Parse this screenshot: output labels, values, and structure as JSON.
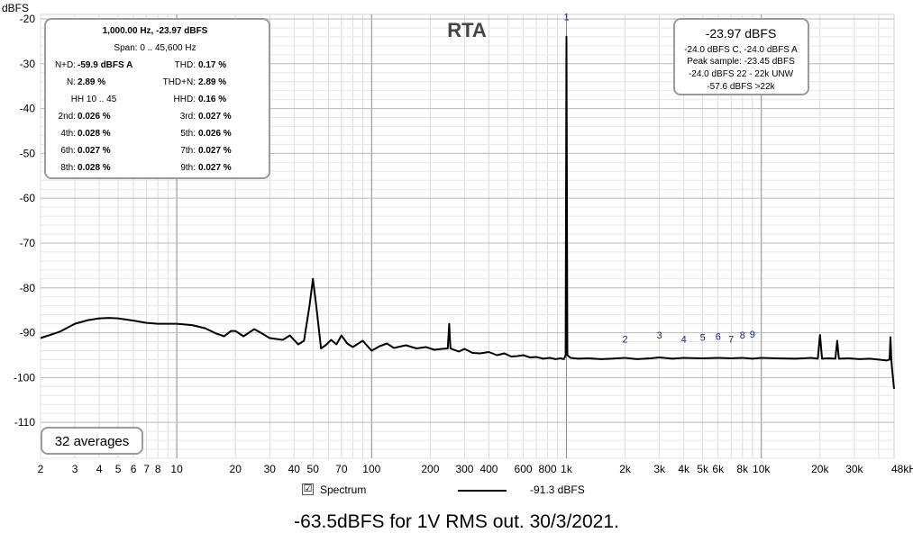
{
  "chart_data": {
    "type": "line",
    "title": "RTA",
    "ylabel": "dBFS",
    "x_scale": "log",
    "xlim": [
      2,
      48000
    ],
    "ylim": [
      -118,
      -19
    ],
    "y_ticks": [
      -20,
      -30,
      -40,
      -50,
      -60,
      -70,
      -80,
      -90,
      -100,
      -110
    ],
    "x_ticks": [
      {
        "v": 2,
        "label": "2"
      },
      {
        "v": 3,
        "label": "3"
      },
      {
        "v": 4,
        "label": "4"
      },
      {
        "v": 5,
        "label": "5"
      },
      {
        "v": 6,
        "label": "6"
      },
      {
        "v": 7,
        "label": "7"
      },
      {
        "v": 8,
        "label": "8"
      },
      {
        "v": 10,
        "label": "10"
      },
      {
        "v": 20,
        "label": "20"
      },
      {
        "v": 30,
        "label": "30"
      },
      {
        "v": 40,
        "label": "40"
      },
      {
        "v": 50,
        "label": "50"
      },
      {
        "v": 70,
        "label": "70"
      },
      {
        "v": 100,
        "label": "100"
      },
      {
        "v": 200,
        "label": "200"
      },
      {
        "v": 300,
        "label": "300"
      },
      {
        "v": 400,
        "label": "400"
      },
      {
        "v": 600,
        "label": "600"
      },
      {
        "v": 800,
        "label": "800"
      },
      {
        "v": 1000,
        "label": "1k"
      },
      {
        "v": 2000,
        "label": "2k"
      },
      {
        "v": 3000,
        "label": "3k"
      },
      {
        "v": 4000,
        "label": "4k"
      },
      {
        "v": 5000,
        "label": "5k"
      },
      {
        "v": 6000,
        "label": "6k"
      },
      {
        "v": 8000,
        "label": "8k"
      },
      {
        "v": 10000,
        "label": "10k"
      },
      {
        "v": 20000,
        "label": "20k"
      },
      {
        "v": 30000,
        "label": "30k"
      },
      {
        "v": 48000,
        "label": "48kHz"
      }
    ],
    "series": [
      {
        "points": [
          [
            2,
            -91.2
          ],
          [
            2.5,
            -89.8
          ],
          [
            3,
            -88.0
          ],
          [
            3.5,
            -87.2
          ],
          [
            4,
            -86.8
          ],
          [
            4.5,
            -86.7
          ],
          [
            5,
            -86.8
          ],
          [
            6,
            -87.3
          ],
          [
            7,
            -87.8
          ],
          [
            8,
            -88.0
          ],
          [
            10,
            -88.0
          ],
          [
            12,
            -88.3
          ],
          [
            14,
            -89.0
          ],
          [
            16,
            -90.2
          ],
          [
            17.5,
            -90.8
          ],
          [
            19,
            -89.6
          ],
          [
            20,
            -89.6
          ],
          [
            22,
            -90.8
          ],
          [
            25,
            -89.2
          ],
          [
            27,
            -90.0
          ],
          [
            30,
            -91.2
          ],
          [
            35,
            -91.6
          ],
          [
            38,
            -90.6
          ],
          [
            42,
            -92.6
          ],
          [
            45,
            -91.8
          ],
          [
            48,
            -84.0
          ],
          [
            50,
            -78.0
          ],
          [
            52,
            -84.0
          ],
          [
            55,
            -93.5
          ],
          [
            58,
            -92.8
          ],
          [
            62,
            -91.6
          ],
          [
            66,
            -92.6
          ],
          [
            70,
            -90.6
          ],
          [
            75,
            -92.4
          ],
          [
            80,
            -93.2
          ],
          [
            90,
            -91.8
          ],
          [
            100,
            -94.0
          ],
          [
            110,
            -93.0
          ],
          [
            120,
            -92.4
          ],
          [
            130,
            -93.4
          ],
          [
            150,
            -92.8
          ],
          [
            170,
            -93.5
          ],
          [
            190,
            -93.2
          ],
          [
            210,
            -93.8
          ],
          [
            230,
            -93.6
          ],
          [
            246,
            -93.5
          ],
          [
            250,
            -88.0
          ],
          [
            254,
            -93.5
          ],
          [
            280,
            -94.2
          ],
          [
            300,
            -93.6
          ],
          [
            330,
            -94.5
          ],
          [
            360,
            -94.6
          ],
          [
            400,
            -94.3
          ],
          [
            440,
            -95.0
          ],
          [
            480,
            -94.6
          ],
          [
            520,
            -95.3
          ],
          [
            560,
            -95.2
          ],
          [
            600,
            -95.0
          ],
          [
            650,
            -95.5
          ],
          [
            700,
            -95.4
          ],
          [
            760,
            -95.8
          ],
          [
            820,
            -95.6
          ],
          [
            880,
            -95.9
          ],
          [
            930,
            -95.7
          ],
          [
            970,
            -95.9
          ],
          [
            990,
            -95.0
          ],
          [
            1000,
            -23.97
          ],
          [
            1010,
            -95.0
          ],
          [
            1050,
            -95.6
          ],
          [
            1150,
            -95.8
          ],
          [
            1300,
            -95.7
          ],
          [
            1500,
            -95.9
          ],
          [
            1700,
            -95.8
          ],
          [
            2000,
            -95.6
          ],
          [
            2300,
            -95.9
          ],
          [
            2700,
            -95.7
          ],
          [
            3000,
            -95.5
          ],
          [
            3500,
            -95.8
          ],
          [
            4000,
            -95.6
          ],
          [
            5000,
            -95.7
          ],
          [
            6000,
            -95.6
          ],
          [
            7000,
            -95.7
          ],
          [
            8000,
            -95.6
          ],
          [
            9000,
            -95.8
          ],
          [
            10000,
            -95.6
          ],
          [
            12000,
            -95.7
          ],
          [
            15000,
            -95.8
          ],
          [
            18000,
            -95.6
          ],
          [
            19500,
            -95.8
          ],
          [
            20000,
            -90.5
          ],
          [
            20500,
            -95.8
          ],
          [
            22000,
            -95.7
          ],
          [
            24000,
            -95.8
          ],
          [
            24500,
            -91.8
          ],
          [
            25000,
            -95.8
          ],
          [
            28000,
            -95.7
          ],
          [
            32000,
            -95.9
          ],
          [
            36000,
            -95.8
          ],
          [
            40000,
            -96.0
          ],
          [
            44000,
            -96.2
          ],
          [
            45500,
            -96.0
          ],
          [
            46000,
            -91.0
          ],
          [
            46500,
            -96.2
          ],
          [
            47000,
            -98.5
          ],
          [
            47500,
            -100.5
          ],
          [
            48000,
            -102.5
          ]
        ]
      }
    ],
    "harmonic_markers": [
      {
        "label": "1",
        "f": 1000,
        "db": -19.5
      },
      {
        "label": "2",
        "f": 2000,
        "db": -91.4
      },
      {
        "label": "3",
        "f": 3000,
        "db": -90.5
      },
      {
        "label": "4",
        "f": 4000,
        "db": -91.4
      },
      {
        "label": "5",
        "f": 5000,
        "db": -91.0
      },
      {
        "label": "6",
        "f": 6000,
        "db": -90.8
      },
      {
        "label": "7",
        "f": 7000,
        "db": -91.4
      },
      {
        "label": "8",
        "f": 8000,
        "db": -90.5
      },
      {
        "label": "9",
        "f": 9000,
        "db": -90.3
      }
    ]
  },
  "info_box": {
    "header": "1,000.00 Hz, -23.97 dBFS",
    "span": "Span: 0 .. 45,600 Hz",
    "rows": [
      {
        "l1": "N+D:",
        "v1": "-59.9 dBFS A",
        "l2": "THD:",
        "v2": "0.17 %"
      },
      {
        "l1": "N:",
        "v1": "2.89 %",
        "l2": "THD+N:",
        "v2": "2.89 %"
      },
      {
        "l1": "HH 10 .. 45",
        "v1": "",
        "l2": "HHD:",
        "v2": "0.16 %"
      },
      {
        "l1": "2nd:",
        "v1": "0.026 %",
        "l2": "3rd:",
        "v2": "0.027 %"
      },
      {
        "l1": "4th:",
        "v1": "0.028 %",
        "l2": "5th:",
        "v2": "0.026 %"
      },
      {
        "l1": "6th:",
        "v1": "0.027 %",
        "l2": "7th:",
        "v2": "0.027 %"
      },
      {
        "l1": "8th:",
        "v1": "0.028 %",
        "l2": "9th:",
        "v2": "0.027 %"
      }
    ]
  },
  "level_box": {
    "title": "-23.97 dBFS",
    "lines": [
      "-24.0 dBFS C, -24.0 dBFS A",
      "Peak sample: -23.45 dBFS",
      "-24.0 dBFS 22 - 22k UNW",
      "-57.6 dBFS >22k"
    ]
  },
  "averages_label": "32 averages",
  "legend": {
    "checkbox_mark": "☑",
    "spectrum_label": "Spectrum",
    "series_value": "-91.3 dBFS"
  },
  "caption": "-63.5dBFS for 1V RMS out. 30/3/2021."
}
